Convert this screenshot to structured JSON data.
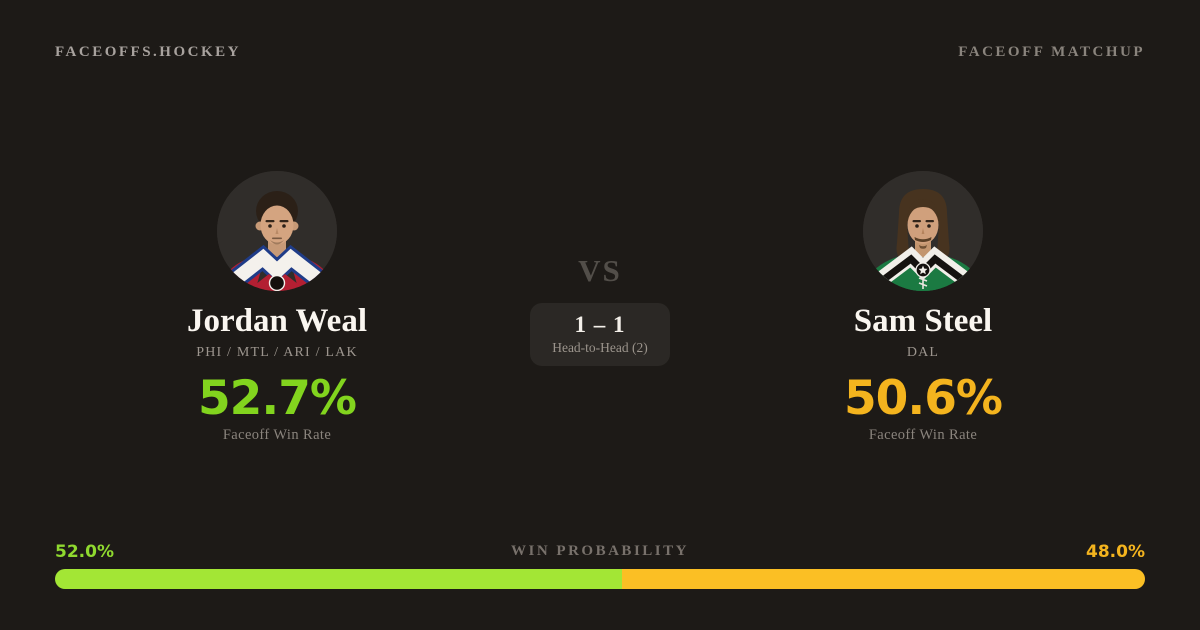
{
  "brand": "FACEOFFS.HOCKEY",
  "card_label": "FACEOFF MATCHUP",
  "left_player": {
    "name": "Jordan Weal",
    "teams": "PHI / MTL / ARI / LAK",
    "win_rate": "52.7%",
    "win_rate_label": "Faceoff Win Rate",
    "accent_color": "#82d41e",
    "headshot": "jordan-weal-headshot"
  },
  "right_player": {
    "name": "Sam Steel",
    "teams": "DAL",
    "win_rate": "50.6%",
    "win_rate_label": "Faceoff Win Rate",
    "accent_color": "#f4b41e",
    "headshot": "sam-steel-headshot"
  },
  "versus": {
    "label": "VS",
    "score": "1 – 1",
    "sublabel": "Head-to-Head (2)"
  },
  "win_probability": {
    "title": "WIN PROBABILITY",
    "left_value": "52.0%",
    "right_value": "48.0%",
    "left_percent": 52,
    "right_percent": 48,
    "left_bar_color": "#a3e635",
    "right_bar_color": "#fbbf24",
    "left_text_color": "#8fd92f",
    "right_text_color": "#f4b41e"
  },
  "theme": {
    "background": "#1d1a17",
    "avatar_background": "#302d2a"
  }
}
